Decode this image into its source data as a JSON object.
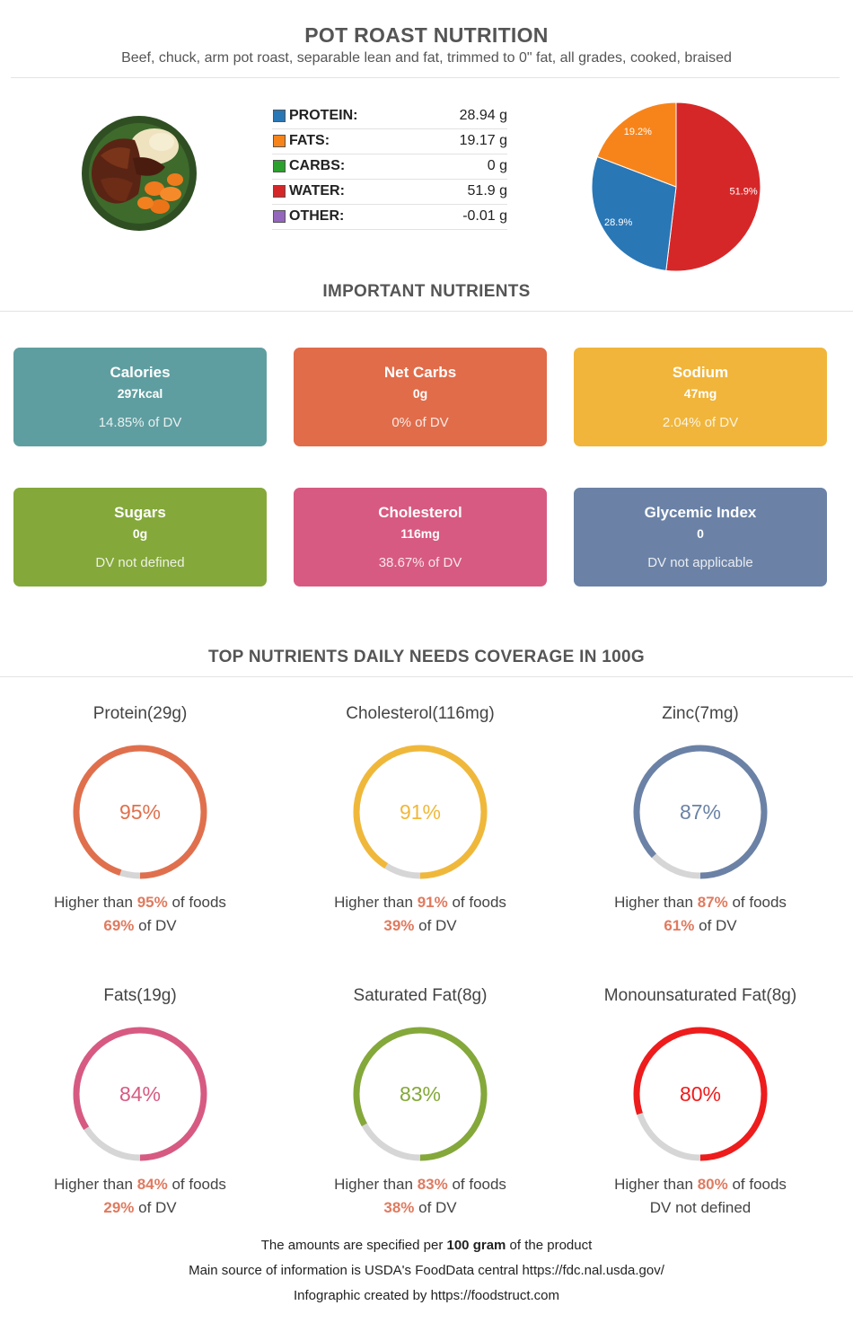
{
  "header": {
    "title": "POT ROAST NUTRITION",
    "subtitle": "Beef, chuck, arm pot roast, separable lean and fat, trimmed to 0\" fat, all grades, cooked, braised"
  },
  "macros": [
    {
      "label": "PROTEIN:",
      "value": "28.94 g",
      "color": "#2a77b6"
    },
    {
      "label": "FATS:",
      "value": "19.17 g",
      "color": "#f7841a"
    },
    {
      "label": "CARBS:",
      "value": "0 g",
      "color": "#2ca02c"
    },
    {
      "label": "WATER:",
      "value": "51.9 g",
      "color": "#d62728"
    },
    {
      "label": "OTHER:",
      "value": "-0.01 g",
      "color": "#9467bd"
    }
  ],
  "chart_data": {
    "type": "pie",
    "slices": [
      {
        "label": "51.9%",
        "value": 51.9,
        "color": "#d62728"
      },
      {
        "label": "28.9%",
        "value": 28.9,
        "color": "#2a77b6"
      },
      {
        "label": "19.2%",
        "value": 19.2,
        "color": "#f7841a"
      }
    ]
  },
  "important": {
    "title": "IMPORTANT NUTRIENTS",
    "cards": [
      {
        "name": "Calories",
        "value": "297kcal",
        "dv": "14.85% of DV",
        "color": "#5f9ea0"
      },
      {
        "name": "Net Carbs",
        "value": "0g",
        "dv": "0% of DV",
        "color": "#e06c4a"
      },
      {
        "name": "Sodium",
        "value": "47mg",
        "dv": "2.04% of DV",
        "color": "#f0b53a"
      },
      {
        "name": "Sugars",
        "value": "0g",
        "dv": "DV not defined",
        "color": "#84a83a"
      },
      {
        "name": "Cholesterol",
        "value": "116mg",
        "dv": "38.67% of DV",
        "color": "#d75a82"
      },
      {
        "name": "Glycemic Index",
        "value": "0",
        "dv": "DV not applicable",
        "color": "#6b82a6"
      }
    ]
  },
  "coverage": {
    "title": "TOP NUTRIENTS DAILY NEEDS COVERAGE IN 100G",
    "higher_prefix": "Higher than ",
    "higher_suffix": " of foods",
    "dv_suffix": " of DV",
    "items": [
      {
        "name": "Protein(29g)",
        "percent": 95,
        "percent_label": "95%",
        "dv": "69%",
        "dv_text": "",
        "color": "#e0704d"
      },
      {
        "name": "Cholesterol(116mg)",
        "percent": 91,
        "percent_label": "91%",
        "dv": "39%",
        "dv_text": "",
        "color": "#f0b83a"
      },
      {
        "name": "Zinc(7mg)",
        "percent": 87,
        "percent_label": "87%",
        "dv": "61%",
        "dv_text": "",
        "color": "#6b82a6"
      },
      {
        "name": "Fats(19g)",
        "percent": 84,
        "percent_label": "84%",
        "dv": "29%",
        "dv_text": "",
        "color": "#d75a82"
      },
      {
        "name": "Saturated Fat(8g)",
        "percent": 83,
        "percent_label": "83%",
        "dv": "38%",
        "dv_text": "",
        "color": "#84a83a"
      },
      {
        "name": "Monounsaturated Fat(8g)",
        "percent": 80,
        "percent_label": "80%",
        "dv": "",
        "dv_text": "DV not defined",
        "color": "#ee1c1c"
      }
    ]
  },
  "footer": {
    "line1_prefix": "The amounts are specified per ",
    "line1_bold": "100 gram",
    "line1_suffix": " of the product",
    "line2": "Main source of information is USDA's FoodData central https://fdc.nal.usda.gov/",
    "line3": "Infographic created by https://foodstruct.com"
  }
}
